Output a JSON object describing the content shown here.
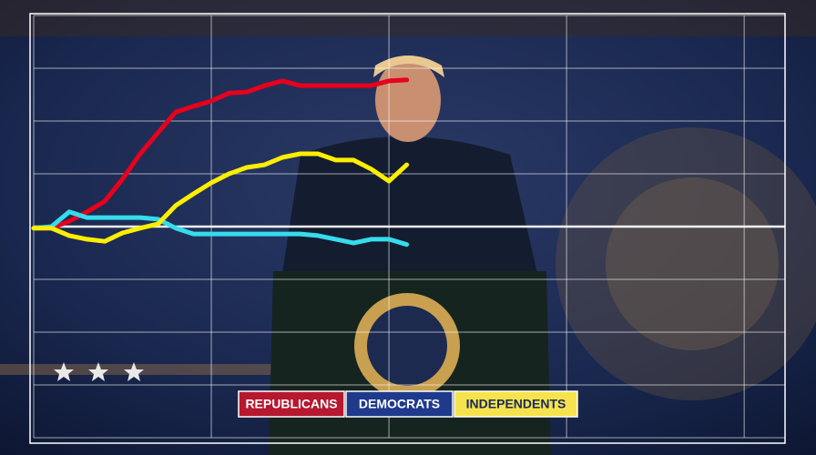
{
  "chart_data": {
    "type": "line",
    "x": [
      0,
      0.1,
      0.2,
      0.3,
      0.4,
      0.5,
      0.6,
      0.7,
      0.8,
      0.9,
      1,
      1.1,
      1.2,
      1.3,
      1.4,
      1.5,
      1.6,
      1.7,
      1.8,
      1.9,
      2,
      2.1
    ],
    "series": [
      {
        "name": "REPUBLICANS",
        "color": "#e8001c",
        "values": [
          -0.03,
          -0.03,
          0.1,
          0.28,
          0.48,
          0.9,
          1.38,
          1.78,
          2.17,
          2.28,
          2.38,
          2.53,
          2.55,
          2.67,
          2.76,
          2.67,
          2.67,
          2.67,
          2.67,
          2.67,
          2.76,
          2.78
        ]
      },
      {
        "name": "DEMOCRATS",
        "color": "#35dcec",
        "values": [
          -0.03,
          0,
          0.28,
          0.17,
          0.17,
          0.17,
          0.17,
          0.14,
          -0.03,
          -0.14,
          -0.14,
          -0.14,
          -0.14,
          -0.14,
          -0.14,
          -0.14,
          -0.17,
          -0.24,
          -0.31,
          -0.24,
          -0.24,
          -0.34
        ]
      },
      {
        "name": "INDEPENDENTS",
        "color": "#ffee00",
        "values": [
          -0.03,
          -0.03,
          -0.17,
          -0.24,
          -0.28,
          -0.12,
          -0.03,
          0.05,
          0.4,
          0.62,
          0.83,
          1,
          1.12,
          1.17,
          1.31,
          1.38,
          1.38,
          1.26,
          1.26,
          1.09,
          0.86,
          1.17
        ]
      }
    ],
    "xlim": [
      0,
      4.23
    ],
    "xticks": [
      0,
      1,
      2,
      3,
      4
    ],
    "ylim": [
      -4,
      4
    ],
    "yticks": [
      -4,
      -3,
      -2,
      -1,
      0,
      1,
      2,
      3,
      4
    ],
    "grid": true,
    "legend": "bottom"
  }
}
